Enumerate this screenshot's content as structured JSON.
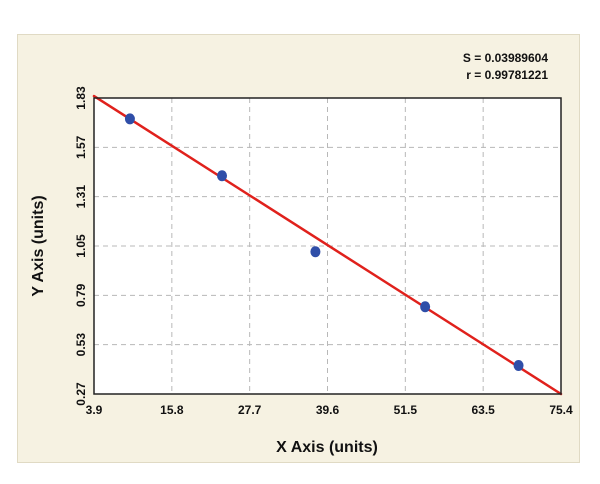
{
  "stats": {
    "s_text": "S = 0.03989604",
    "r_text": "r = 0.99781221"
  },
  "chart_data": {
    "type": "scatter",
    "title": "",
    "xlabel": "X Axis (units)",
    "ylabel": "Y Axis (units)",
    "xlim": [
      3.9,
      75.4
    ],
    "ylim": [
      0.27,
      1.83
    ],
    "x_ticks": [
      "3.9",
      "15.8",
      "27.7",
      "39.6",
      "51.5",
      "63.5",
      "75.4"
    ],
    "y_ticks": [
      "0.27",
      "0.53",
      "0.79",
      "1.05",
      "1.31",
      "1.57",
      "1.83"
    ],
    "grid": true,
    "series": [
      {
        "points": [
          {
            "x": 9.4,
            "y": 1.72
          },
          {
            "x": 23.5,
            "y": 1.42
          },
          {
            "x": 37.8,
            "y": 1.02
          },
          {
            "x": 54.6,
            "y": 0.73
          },
          {
            "x": 68.9,
            "y": 0.42
          }
        ]
      }
    ],
    "fit_line": {
      "x": [
        3.9,
        75.4
      ],
      "y": [
        1.84,
        0.27
      ]
    },
    "colors": {
      "points": "#2f4ea8",
      "fit_line": "#e0211c",
      "grid": "#b8b8b8",
      "plot_background": "#ffffff",
      "frame_background": "#f6f2e2"
    }
  }
}
